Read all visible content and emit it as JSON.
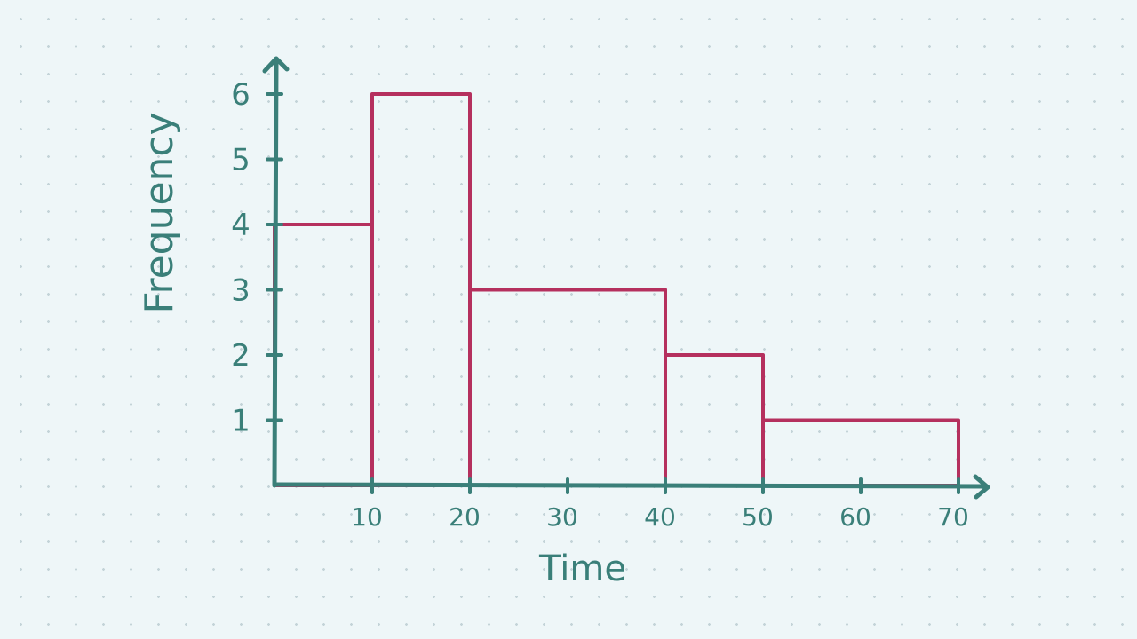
{
  "chart_data": {
    "type": "bar",
    "style": "histogram",
    "title": "",
    "xlabel": "Time",
    "ylabel": "Frequency",
    "bins": [
      {
        "start": 0,
        "end": 10,
        "frequency": 4
      },
      {
        "start": 10,
        "end": 20,
        "frequency": 6
      },
      {
        "start": 20,
        "end": 40,
        "frequency": 3
      },
      {
        "start": 40,
        "end": 50,
        "frequency": 2
      },
      {
        "start": 50,
        "end": 70,
        "frequency": 1
      }
    ],
    "xticks": [
      10,
      20,
      30,
      40,
      50,
      60,
      70
    ],
    "yticks": [
      1,
      2,
      3,
      4,
      5,
      6
    ],
    "xlim": [
      0,
      70
    ],
    "ylim": [
      0,
      6
    ],
    "grid": false,
    "colors": {
      "axis": "#3a7f79",
      "bars": "#b5305e",
      "background": "#eef6f8"
    }
  }
}
